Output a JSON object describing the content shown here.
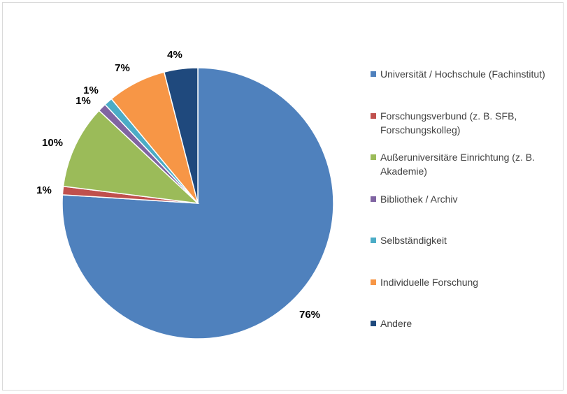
{
  "chart_data": {
    "type": "pie",
    "series": [
      {
        "name": "Universität / Hochschule (Fachinstitut)",
        "value": 76,
        "label": "76%",
        "color": "#4f81bd"
      },
      {
        "name": "Forschungsverbund (z. B. SFB, Forschungskolleg)",
        "value": 1,
        "label": "1%",
        "color": "#c0504d"
      },
      {
        "name": "Außeruniversitäre Einrichtung (z. B. Akademie)",
        "value": 10,
        "label": "10%",
        "color": "#9bbb59"
      },
      {
        "name": "Bibliothek / Archiv",
        "value": 1,
        "label": "1%",
        "color": "#8064a2"
      },
      {
        "name": "Selbständigkeit",
        "value": 1,
        "label": "1%",
        "color": "#4bacc6"
      },
      {
        "name": "Individuelle Forschung",
        "value": 7,
        "label": "7%",
        "color": "#f79646"
      },
      {
        "name": "Andere",
        "value": 4,
        "label": "4%",
        "color": "#1f497d"
      }
    ],
    "legend_position": "right"
  }
}
